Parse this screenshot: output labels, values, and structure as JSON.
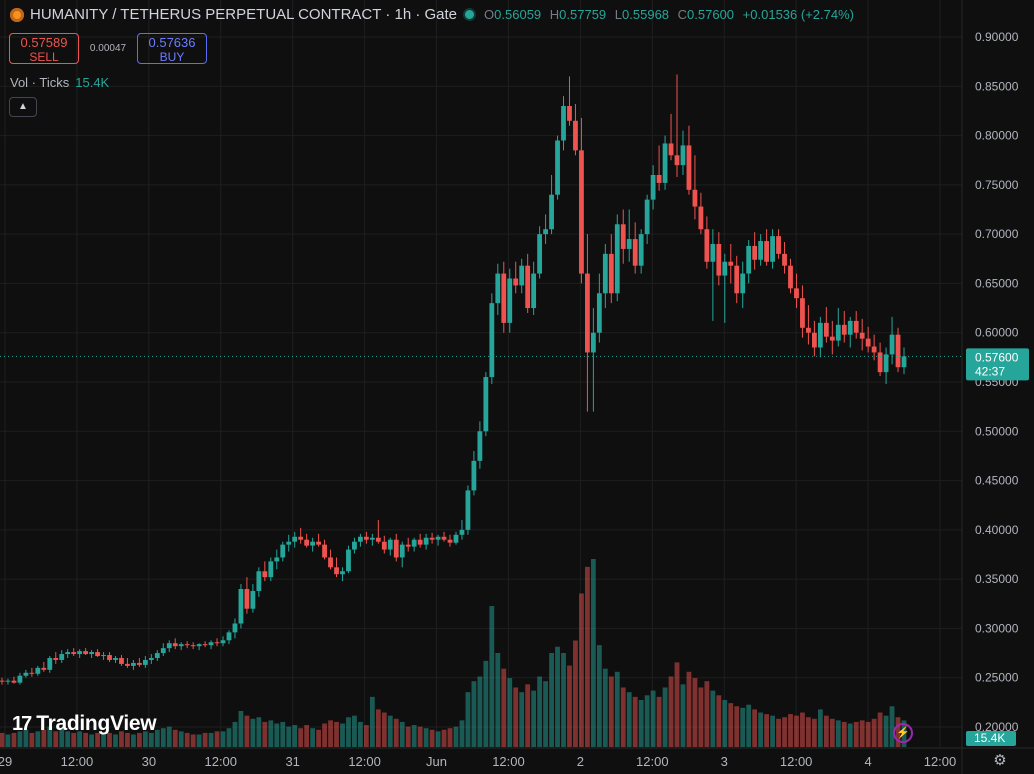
{
  "header": {
    "title": "HUMANITY / TETHERUS PERPETUAL CONTRACT · 1h · Gate",
    "ohlc": {
      "o_label": "O",
      "o": "0.56059",
      "h_label": "H",
      "h": "0.57759",
      "l_label": "L",
      "l": "0.55968",
      "c_label": "C",
      "c": "0.57600",
      "change": "+0.01536 (+2.74%)"
    }
  },
  "trade": {
    "sell_price": "0.57589",
    "sell_label": "SELL",
    "spread": "0.00047",
    "buy_price": "0.57636",
    "buy_label": "BUY"
  },
  "volume_legend": {
    "label": "Vol · Ticks",
    "value": "15.4K"
  },
  "branding": {
    "logo_text": "TradingView",
    "logo_mark": "17"
  },
  "colors": {
    "up": "#26a69a",
    "down": "#ef5350",
    "background": "#0f0f0f",
    "grid": "#1f1f1f"
  },
  "icons": {
    "collapse": "chevron-up-icon",
    "alert": "lightning-icon",
    "settings": "gear-icon"
  },
  "chart_data": {
    "type": "candlestick",
    "symbol": "HUMANITY / TETHERUS PERPETUAL CONTRACT",
    "interval": "1h",
    "exchange": "Gate",
    "price_axis": {
      "ticks": [
        "0.90000",
        "0.85000",
        "0.80000",
        "0.75000",
        "0.70000",
        "0.65000",
        "0.60000",
        "0.55000",
        "0.50000",
        "0.45000",
        "0.40000",
        "0.35000",
        "0.30000",
        "0.25000",
        "0.20000"
      ],
      "range": [
        0.19,
        0.915
      ]
    },
    "time_axis": {
      "ticks": [
        "29",
        "12:00",
        "30",
        "12:00",
        "31",
        "12:00",
        "Jun",
        "12:00",
        "2",
        "12:00",
        "3",
        "12:00",
        "4",
        "12:00"
      ]
    },
    "last_price": "0.57600",
    "countdown": "42:37",
    "last_volume": "15.4K",
    "grid": true,
    "candles": [
      [
        0.247,
        0.25,
        0.243,
        0.246,
        0.9
      ],
      [
        0.246,
        0.249,
        0.243,
        0.247,
        0.8
      ],
      [
        0.247,
        0.251,
        0.244,
        0.245,
        0.9
      ],
      [
        0.245,
        0.255,
        0.243,
        0.252,
        1.0
      ],
      [
        0.252,
        0.258,
        0.25,
        0.255,
        1.1
      ],
      [
        0.255,
        0.26,
        0.251,
        0.254,
        0.9
      ],
      [
        0.254,
        0.262,
        0.252,
        0.26,
        1.0
      ],
      [
        0.26,
        0.266,
        0.256,
        0.258,
        1.1
      ],
      [
        0.258,
        0.272,
        0.255,
        0.27,
        1.3
      ],
      [
        0.27,
        0.276,
        0.264,
        0.268,
        1.0
      ],
      [
        0.268,
        0.278,
        0.265,
        0.274,
        1.2
      ],
      [
        0.274,
        0.279,
        0.27,
        0.276,
        1.0
      ],
      [
        0.276,
        0.28,
        0.272,
        0.274,
        0.9
      ],
      [
        0.274,
        0.279,
        0.27,
        0.277,
        1.0
      ],
      [
        0.277,
        0.28,
        0.273,
        0.274,
        0.9
      ],
      [
        0.274,
        0.278,
        0.27,
        0.276,
        0.8
      ],
      [
        0.276,
        0.279,
        0.271,
        0.272,
        0.9
      ],
      [
        0.272,
        0.276,
        0.268,
        0.273,
        0.8
      ],
      [
        0.273,
        0.276,
        0.266,
        0.268,
        0.9
      ],
      [
        0.268,
        0.272,
        0.265,
        0.27,
        0.8
      ],
      [
        0.27,
        0.273,
        0.262,
        0.264,
        1.0
      ],
      [
        0.264,
        0.27,
        0.26,
        0.262,
        0.9
      ],
      [
        0.262,
        0.268,
        0.258,
        0.265,
        0.8
      ],
      [
        0.265,
        0.27,
        0.261,
        0.263,
        0.9
      ],
      [
        0.263,
        0.272,
        0.26,
        0.268,
        1.0
      ],
      [
        0.268,
        0.274,
        0.264,
        0.27,
        0.9
      ],
      [
        0.27,
        0.278,
        0.267,
        0.275,
        1.1
      ],
      [
        0.275,
        0.285,
        0.272,
        0.28,
        1.2
      ],
      [
        0.28,
        0.288,
        0.276,
        0.285,
        1.3
      ],
      [
        0.285,
        0.29,
        0.279,
        0.282,
        1.1
      ],
      [
        0.282,
        0.286,
        0.278,
        0.284,
        1.0
      ],
      [
        0.284,
        0.287,
        0.28,
        0.283,
        0.9
      ],
      [
        0.283,
        0.286,
        0.279,
        0.282,
        0.8
      ],
      [
        0.282,
        0.285,
        0.278,
        0.284,
        0.8
      ],
      [
        0.284,
        0.287,
        0.281,
        0.283,
        0.9
      ],
      [
        0.283,
        0.288,
        0.279,
        0.286,
        0.9
      ],
      [
        0.286,
        0.29,
        0.282,
        0.285,
        1.0
      ],
      [
        0.285,
        0.292,
        0.282,
        0.288,
        1.0
      ],
      [
        0.288,
        0.298,
        0.284,
        0.296,
        1.2
      ],
      [
        0.296,
        0.31,
        0.29,
        0.305,
        1.6
      ],
      [
        0.305,
        0.345,
        0.3,
        0.34,
        2.3
      ],
      [
        0.34,
        0.352,
        0.315,
        0.32,
        2.0
      ],
      [
        0.32,
        0.345,
        0.316,
        0.338,
        1.8
      ],
      [
        0.338,
        0.362,
        0.332,
        0.358,
        1.9
      ],
      [
        0.358,
        0.368,
        0.348,
        0.352,
        1.6
      ],
      [
        0.352,
        0.372,
        0.348,
        0.368,
        1.7
      ],
      [
        0.368,
        0.38,
        0.36,
        0.372,
        1.5
      ],
      [
        0.372,
        0.388,
        0.368,
        0.385,
        1.6
      ],
      [
        0.385,
        0.395,
        0.378,
        0.388,
        1.3
      ],
      [
        0.388,
        0.398,
        0.382,
        0.393,
        1.4
      ],
      [
        0.393,
        0.402,
        0.386,
        0.39,
        1.2
      ],
      [
        0.39,
        0.396,
        0.382,
        0.384,
        1.4
      ],
      [
        0.384,
        0.392,
        0.378,
        0.388,
        1.2
      ],
      [
        0.388,
        0.396,
        0.383,
        0.385,
        1.1
      ],
      [
        0.385,
        0.39,
        0.37,
        0.372,
        1.5
      ],
      [
        0.372,
        0.38,
        0.36,
        0.362,
        1.7
      ],
      [
        0.362,
        0.372,
        0.352,
        0.355,
        1.6
      ],
      [
        0.355,
        0.362,
        0.348,
        0.358,
        1.5
      ],
      [
        0.358,
        0.384,
        0.356,
        0.38,
        1.9
      ],
      [
        0.38,
        0.392,
        0.376,
        0.388,
        2.0
      ],
      [
        0.388,
        0.396,
        0.383,
        0.393,
        1.6
      ],
      [
        0.393,
        0.398,
        0.386,
        0.39,
        1.4
      ],
      [
        0.39,
        0.396,
        0.384,
        0.392,
        3.2
      ],
      [
        0.392,
        0.41,
        0.386,
        0.388,
        2.4
      ],
      [
        0.388,
        0.394,
        0.376,
        0.38,
        2.2
      ],
      [
        0.38,
        0.392,
        0.374,
        0.39,
        2.0
      ],
      [
        0.39,
        0.396,
        0.368,
        0.372,
        1.8
      ],
      [
        0.372,
        0.388,
        0.362,
        0.385,
        1.6
      ],
      [
        0.385,
        0.392,
        0.378,
        0.383,
        1.3
      ],
      [
        0.383,
        0.392,
        0.378,
        0.39,
        1.4
      ],
      [
        0.39,
        0.396,
        0.382,
        0.385,
        1.3
      ],
      [
        0.385,
        0.396,
        0.38,
        0.392,
        1.2
      ],
      [
        0.392,
        0.397,
        0.386,
        0.39,
        1.1
      ],
      [
        0.39,
        0.395,
        0.384,
        0.393,
        1.0
      ],
      [
        0.393,
        0.398,
        0.388,
        0.39,
        1.1
      ],
      [
        0.39,
        0.395,
        0.383,
        0.387,
        1.2
      ],
      [
        0.387,
        0.398,
        0.385,
        0.395,
        1.3
      ],
      [
        0.395,
        0.41,
        0.39,
        0.4,
        1.7
      ],
      [
        0.4,
        0.445,
        0.395,
        0.44,
        3.5
      ],
      [
        0.44,
        0.48,
        0.435,
        0.47,
        4.2
      ],
      [
        0.47,
        0.51,
        0.462,
        0.5,
        4.5
      ],
      [
        0.5,
        0.56,
        0.495,
        0.555,
        5.5
      ],
      [
        0.555,
        0.64,
        0.548,
        0.63,
        9.0
      ],
      [
        0.63,
        0.67,
        0.618,
        0.66,
        6.0
      ],
      [
        0.66,
        0.672,
        0.6,
        0.61,
        5.0
      ],
      [
        0.61,
        0.665,
        0.6,
        0.655,
        4.4
      ],
      [
        0.655,
        0.672,
        0.64,
        0.648,
        3.8
      ],
      [
        0.648,
        0.675,
        0.64,
        0.668,
        3.5
      ],
      [
        0.668,
        0.68,
        0.62,
        0.625,
        4.0
      ],
      [
        0.625,
        0.672,
        0.618,
        0.66,
        3.6
      ],
      [
        0.66,
        0.708,
        0.655,
        0.7,
        4.5
      ],
      [
        0.7,
        0.72,
        0.69,
        0.705,
        4.2
      ],
      [
        0.705,
        0.76,
        0.7,
        0.74,
        6.0
      ],
      [
        0.74,
        0.8,
        0.735,
        0.795,
        6.4
      ],
      [
        0.795,
        0.84,
        0.785,
        0.83,
        6.0
      ],
      [
        0.83,
        0.86,
        0.81,
        0.815,
        5.2
      ],
      [
        0.815,
        0.832,
        0.78,
        0.785,
        6.8
      ],
      [
        0.785,
        0.818,
        0.65,
        0.66,
        9.8
      ],
      [
        0.66,
        0.7,
        0.52,
        0.58,
        11.5
      ],
      [
        0.58,
        0.625,
        0.52,
        0.6,
        12.0
      ],
      [
        0.6,
        0.66,
        0.59,
        0.64,
        6.5
      ],
      [
        0.64,
        0.69,
        0.625,
        0.68,
        5.0
      ],
      [
        0.68,
        0.7,
        0.63,
        0.64,
        4.5
      ],
      [
        0.64,
        0.72,
        0.632,
        0.71,
        4.8
      ],
      [
        0.71,
        0.725,
        0.67,
        0.685,
        3.8
      ],
      [
        0.685,
        0.725,
        0.672,
        0.695,
        3.5
      ],
      [
        0.695,
        0.712,
        0.66,
        0.668,
        3.2
      ],
      [
        0.668,
        0.705,
        0.66,
        0.7,
        3.0
      ],
      [
        0.7,
        0.74,
        0.69,
        0.735,
        3.3
      ],
      [
        0.735,
        0.77,
        0.725,
        0.76,
        3.6
      ],
      [
        0.76,
        0.79,
        0.744,
        0.752,
        3.2
      ],
      [
        0.752,
        0.8,
        0.745,
        0.792,
        3.8
      ],
      [
        0.792,
        0.822,
        0.775,
        0.78,
        4.5
      ],
      [
        0.78,
        0.862,
        0.758,
        0.77,
        5.4
      ],
      [
        0.77,
        0.805,
        0.76,
        0.79,
        4.0
      ],
      [
        0.79,
        0.81,
        0.74,
        0.745,
        4.8
      ],
      [
        0.745,
        0.78,
        0.715,
        0.728,
        4.4
      ],
      [
        0.728,
        0.742,
        0.7,
        0.705,
        3.8
      ],
      [
        0.705,
        0.718,
        0.665,
        0.672,
        4.2
      ],
      [
        0.672,
        0.705,
        0.612,
        0.69,
        3.6
      ],
      [
        0.69,
        0.702,
        0.648,
        0.658,
        3.3
      ],
      [
        0.658,
        0.68,
        0.61,
        0.672,
        3.0
      ],
      [
        0.672,
        0.69,
        0.65,
        0.668,
        2.8
      ],
      [
        0.668,
        0.678,
        0.63,
        0.64,
        2.6
      ],
      [
        0.64,
        0.672,
        0.625,
        0.66,
        2.5
      ],
      [
        0.66,
        0.694,
        0.65,
        0.688,
        2.7
      ],
      [
        0.688,
        0.702,
        0.664,
        0.674,
        2.4
      ],
      [
        0.674,
        0.7,
        0.668,
        0.693,
        2.2
      ],
      [
        0.693,
        0.705,
        0.668,
        0.672,
        2.1
      ],
      [
        0.672,
        0.705,
        0.665,
        0.698,
        2.0
      ],
      [
        0.698,
        0.705,
        0.675,
        0.68,
        1.8
      ],
      [
        0.68,
        0.692,
        0.66,
        0.668,
        1.9
      ],
      [
        0.668,
        0.675,
        0.64,
        0.645,
        2.1
      ],
      [
        0.645,
        0.66,
        0.625,
        0.635,
        2.0
      ],
      [
        0.635,
        0.648,
        0.595,
        0.605,
        2.2
      ],
      [
        0.605,
        0.628,
        0.588,
        0.6,
        1.9
      ],
      [
        0.6,
        0.612,
        0.576,
        0.585,
        1.8
      ],
      [
        0.585,
        0.616,
        0.575,
        0.61,
        2.4
      ],
      [
        0.61,
        0.626,
        0.59,
        0.596,
        2.0
      ],
      [
        0.596,
        0.612,
        0.578,
        0.592,
        1.8
      ],
      [
        0.592,
        0.625,
        0.586,
        0.608,
        1.7
      ],
      [
        0.608,
        0.622,
        0.59,
        0.598,
        1.6
      ],
      [
        0.598,
        0.616,
        0.585,
        0.612,
        1.5
      ],
      [
        0.612,
        0.622,
        0.594,
        0.6,
        1.6
      ],
      [
        0.6,
        0.614,
        0.582,
        0.594,
        1.7
      ],
      [
        0.594,
        0.606,
        0.58,
        0.586,
        1.6
      ],
      [
        0.586,
        0.598,
        0.572,
        0.58,
        1.8
      ],
      [
        0.58,
        0.59,
        0.556,
        0.56,
        2.2
      ],
      [
        0.56,
        0.585,
        0.548,
        0.578,
        2.0
      ],
      [
        0.578,
        0.616,
        0.568,
        0.598,
        2.6
      ],
      [
        0.598,
        0.605,
        0.56,
        0.565,
        1.9
      ],
      [
        0.565,
        0.585,
        0.558,
        0.576,
        1.7
      ]
    ]
  }
}
